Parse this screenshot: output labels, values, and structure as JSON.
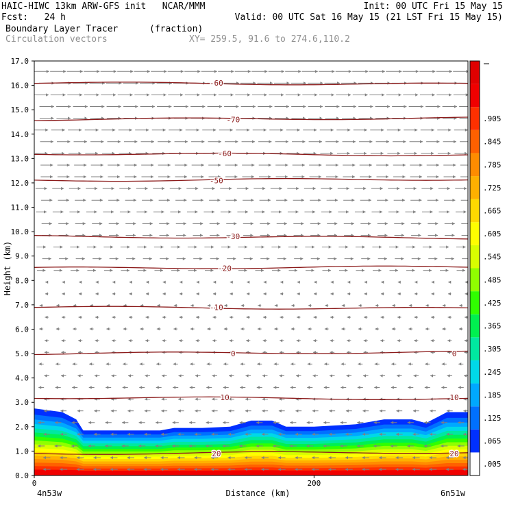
{
  "header": {
    "line1_left": "HAIC-HIWC 13km ARW-GFS init   NCAR/MMM",
    "line1_right": "Init: 00 UTC Fri 15 May 15",
    "line2_left": "Fcst:   24 h",
    "line2_right": "Valid: 00 UTC Sat 16 May 15 (21 LST Fri 15 May 15)",
    "line3_field": "Boundary Layer Tracer",
    "line3_units": "(fraction)",
    "line4_field": "Circulation vectors",
    "line4_xy": "XY= 259.5, 91.6 to 274.6,110.2"
  },
  "chart_data": {
    "type": "heatmap",
    "title": "Boundary Layer Tracer",
    "xlabel": "Distance (km)",
    "ylabel": "Height (km)",
    "x_range": [
      0,
      310
    ],
    "ylim": [
      0,
      17
    ],
    "yticks": [
      "0.0",
      "1.0",
      "2.0",
      "3.0",
      "4.0",
      "5.0",
      "6.0",
      "7.0",
      "8.0",
      "9.0",
      "10.0",
      "11.0",
      "12.0",
      "13.0",
      "14.0",
      "15.0",
      "16.0",
      "17.0"
    ],
    "xticks": [
      {
        "value": 0,
        "label": "0"
      },
      {
        "value": 200,
        "label": "200"
      }
    ],
    "x_endpoints": {
      "left": "4n53w",
      "right": "6n51w"
    },
    "colorbar_levels": [
      ".005",
      ".065",
      ".125",
      ".185",
      ".245",
      ".305",
      ".365",
      ".425",
      ".485",
      ".545",
      ".605",
      ".665",
      ".725",
      ".785",
      ".845",
      ".905"
    ],
    "colorbar_colors": [
      "#ffffff",
      "#0030ff",
      "#0070ff",
      "#00a8ff",
      "#00d8e8",
      "#00e8a0",
      "#00f050",
      "#30ff00",
      "#90ff00",
      "#d8ff00",
      "#ffff00",
      "#ffd800",
      "#ffb000",
      "#ff8c00",
      "#ff6000",
      "#ff3000",
      "#f00000",
      "#e00000"
    ],
    "tracer_top_km": [
      [
        0,
        2.75
      ],
      [
        20,
        2.6
      ],
      [
        30,
        2.3
      ],
      [
        35,
        1.85
      ],
      [
        60,
        1.85
      ],
      [
        90,
        1.85
      ],
      [
        100,
        1.95
      ],
      [
        120,
        1.95
      ],
      [
        140,
        2.0
      ],
      [
        155,
        2.25
      ],
      [
        170,
        2.25
      ],
      [
        180,
        2.0
      ],
      [
        200,
        2.0
      ],
      [
        230,
        2.1
      ],
      [
        250,
        2.3
      ],
      [
        270,
        2.3
      ],
      [
        280,
        2.15
      ],
      [
        295,
        2.6
      ],
      [
        310,
        2.6
      ]
    ],
    "temperature_contours": [
      {
        "label": "20",
        "height_km": 0.9,
        "color": "#8b1a1a"
      },
      {
        "label": "10",
        "height_km": 3.2,
        "color": "#8b1a1a"
      },
      {
        "label": "0",
        "height_km": 5.0,
        "color": "#8b1a1a"
      },
      {
        "label": "-10",
        "height_km": 6.9,
        "color": "#8b1a1a"
      },
      {
        "label": "-20",
        "height_km": 8.5,
        "color": "#8b1a1a"
      },
      {
        "label": "-30",
        "height_km": 9.8,
        "color": "#8b1a1a"
      },
      {
        "label": "-50",
        "height_km": 12.1,
        "color": "#8b1a1a"
      },
      {
        "label": "-60",
        "height_km": 13.2,
        "color": "#8b1a1a"
      },
      {
        "label": "-70",
        "height_km": 14.6,
        "color": "#8b1a1a"
      },
      {
        "label": "-60",
        "height_km": 16.1,
        "color": "#8b1a1a"
      }
    ],
    "vectors": {
      "upper_direction": "east",
      "lower_direction": "west",
      "transition_height_km": 8.0,
      "color": "#808080"
    },
    "grid": false
  }
}
